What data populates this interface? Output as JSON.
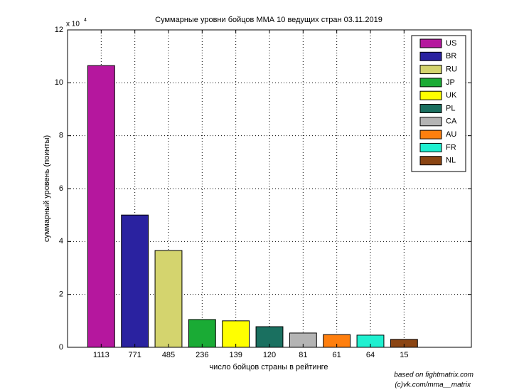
{
  "chart_data": {
    "type": "bar",
    "title": "Суммарные уровни бойцов ММА 10 ведущих стран 03.11.2019",
    "y_multiplier": {
      "base": "x 10",
      "exponent": "4"
    },
    "xlabel": "число бойцов страны в рейтинге",
    "ylabel": "суммарный уровень (поинты)",
    "categories": [
      "1113",
      "771",
      "485",
      "236",
      "139",
      "120",
      "81",
      "61",
      "64",
      "15"
    ],
    "values": [
      10.65,
      5.0,
      3.66,
      1.05,
      1.0,
      0.78,
      0.54,
      0.48,
      0.46,
      0.3
    ],
    "colors": [
      "#b5179e",
      "#2a22a0",
      "#d4d46e",
      "#1aab35",
      "#ffff00",
      "#1a7060",
      "#b4b4b4",
      "#ff7f0e",
      "#1ff0d0",
      "#8b4513"
    ],
    "legend": [
      "US",
      "BR",
      "RU",
      "JP",
      "UK",
      "PL",
      "CA",
      "AU",
      "FR",
      "NL"
    ],
    "legend_position": "upper right",
    "ylim": [
      0,
      12
    ],
    "yticks": [
      0,
      2,
      4,
      6,
      8,
      10,
      12
    ],
    "grid": true,
    "credits": [
      "based on fightmatrix.com",
      "(c)vk.com/mma__matrix"
    ]
  }
}
